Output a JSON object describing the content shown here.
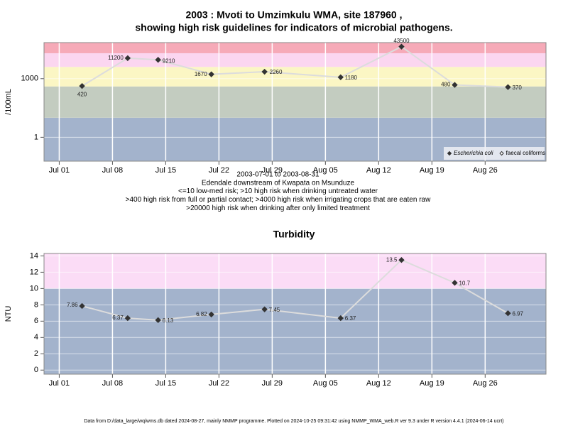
{
  "chart_data": [
    {
      "type": "line",
      "title": [
        "2003 : Mvoti to Umzimkulu WMA, site 187960 ,",
        "showing high risk guidelines for indicators of microbial pathogens."
      ],
      "y_label": "/100mL",
      "notes": [
        "2003-07-01 to 2003-08-31",
        "Edendale downstream of Kwapata on Msunduze",
        "<=10 low-med risk; >10 high risk when drinking untreated water",
        ">400 high risk from full or partial contact; >4000 high risk when irrigating crops that are eaten raw",
        ">20000 high risk when drinking after only limited treatment"
      ],
      "log_y": true,
      "x": [
        "2003-07-04",
        "2003-07-10",
        "2003-07-14",
        "2003-07-21",
        "2003-07-28",
        "2003-08-07",
        "2003-08-15",
        "2003-08-22",
        "2003-08-29"
      ],
      "series": [
        {
          "name": "Escherichia coli",
          "color": "#333333",
          "values": [
            420,
            11200,
            9210,
            1670,
            2260,
            1180,
            43500,
            480,
            370
          ]
        },
        {
          "name": "faecal coliforms",
          "color": "#333333",
          "values": [
            null,
            null,
            null,
            null,
            null,
            null,
            null,
            null,
            null
          ]
        }
      ],
      "xlim": [
        "2003-06-29",
        "2003-09-03"
      ],
      "xticks": [
        {
          "value": "2003-07-01",
          "label": "Jul 01"
        },
        {
          "value": "2003-07-08",
          "label": "Jul 08"
        },
        {
          "value": "2003-07-15",
          "label": "Jul 15"
        },
        {
          "value": "2003-07-22",
          "label": "Jul 22"
        },
        {
          "value": "2003-07-29",
          "label": "Jul 29"
        },
        {
          "value": "2003-08-05",
          "label": "Aug 05"
        },
        {
          "value": "2003-08-12",
          "label": "Aug 12"
        },
        {
          "value": "2003-08-19",
          "label": "Aug 19"
        },
        {
          "value": "2003-08-26",
          "label": "Aug 26"
        }
      ],
      "ylim": [
        0.06,
        70000
      ],
      "yticks": [
        1,
        1000
      ],
      "bands": [
        {
          "from": 0.06,
          "to": 10,
          "color": "#a3b3cc"
        },
        {
          "from": 10,
          "to": 400,
          "color": "#c3ccc0"
        },
        {
          "from": 400,
          "to": 4000,
          "color": "#fbf6c4"
        },
        {
          "from": 4000,
          "to": 20000,
          "color": "#fbd6f0"
        },
        {
          "from": 20000,
          "to": 70000,
          "color": "#f6aab8"
        }
      ],
      "grid": true,
      "legend": "lower right"
    },
    {
      "type": "line",
      "title": "Turbidity",
      "y_label": "NTU",
      "log_y": false,
      "x": [
        "2003-07-04",
        "2003-07-10",
        "2003-07-14",
        "2003-07-21",
        "2003-07-28",
        "2003-08-07",
        "2003-08-15",
        "2003-08-22",
        "2003-08-29"
      ],
      "series": [
        {
          "name": "Turbidity",
          "color": "#333333",
          "values": [
            7.86,
            6.37,
            6.13,
            6.82,
            7.45,
            6.37,
            13.5,
            10.7,
            6.97
          ]
        }
      ],
      "xlim": [
        "2003-06-29",
        "2003-09-03"
      ],
      "xticks": [
        {
          "value": "2003-07-01",
          "label": "Jul 01"
        },
        {
          "value": "2003-07-08",
          "label": "Jul 08"
        },
        {
          "value": "2003-07-15",
          "label": "Jul 15"
        },
        {
          "value": "2003-07-22",
          "label": "Jul 22"
        },
        {
          "value": "2003-07-29",
          "label": "Jul 29"
        },
        {
          "value": "2003-08-05",
          "label": "Aug 05"
        },
        {
          "value": "2003-08-12",
          "label": "Aug 12"
        },
        {
          "value": "2003-08-19",
          "label": "Aug 19"
        },
        {
          "value": "2003-08-26",
          "label": "Aug 26"
        }
      ],
      "ylim": [
        -0.5,
        14.3
      ],
      "yticks": [
        0,
        2,
        4,
        6,
        8,
        10,
        12,
        14
      ],
      "bands": [
        {
          "from": -0.5,
          "to": 10,
          "color": "#a3b3cc"
        },
        {
          "from": 10,
          "to": 14.3,
          "color": "#fbdcf6"
        }
      ],
      "grid": true
    }
  ],
  "footer": "Data from D:/data_large/wq/wms.db dated 2024-08-27, mainly NMMP programme. Plotted on 2024-10-25 09:31:42 using NMMP_WMA_web.R ver 9.3 under R version 4.4.1 (2024-06-14 ucrt)"
}
